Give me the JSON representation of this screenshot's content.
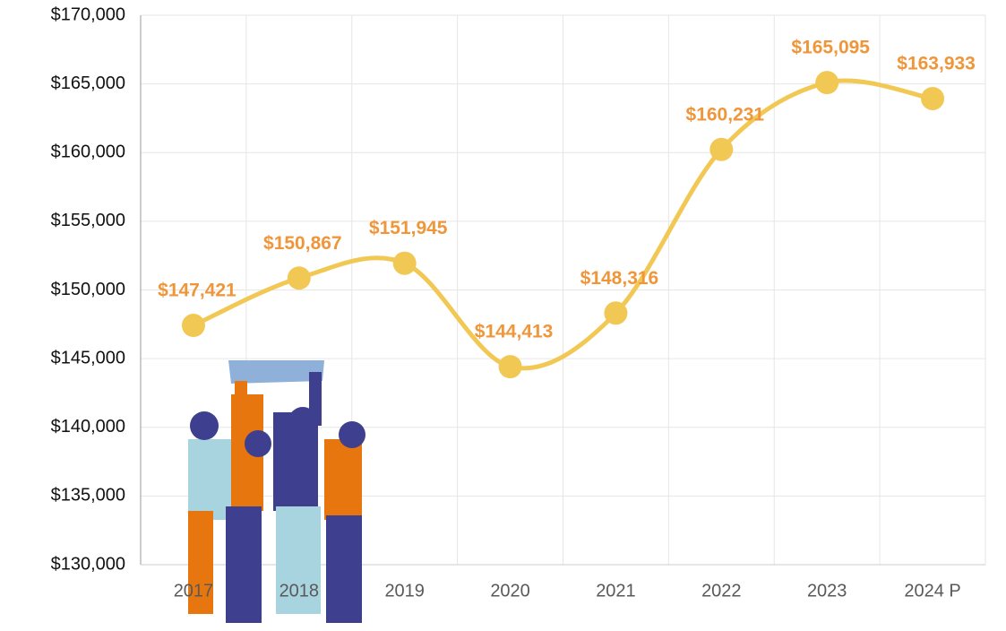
{
  "chart_data": {
    "type": "line",
    "categories": [
      "2017",
      "2018",
      "2019",
      "2020",
      "2021",
      "2022",
      "2023",
      "2024 P"
    ],
    "values": [
      147421,
      150867,
      151945,
      144413,
      148316,
      160231,
      165095,
      163933
    ],
    "value_labels": [
      "$147,421",
      "$150,867",
      "$151,945",
      "$144,413",
      "$148,316",
      "$160,231",
      "$165,095",
      "$163,933"
    ],
    "color": "#f2c855",
    "label_color": "#f0963a",
    "ylim": [
      130000,
      170000
    ],
    "yticks": [
      {
        "value": 130000,
        "label": "$130,000"
      },
      {
        "value": 135000,
        "label": "$135,000"
      },
      {
        "value": 140000,
        "label": "$140,000"
      },
      {
        "value": 145000,
        "label": "$145,000"
      },
      {
        "value": 150000,
        "label": "$150,000"
      },
      {
        "value": 155000,
        "label": "$155,000"
      },
      {
        "value": 160000,
        "label": "$160,000"
      },
      {
        "value": 165000,
        "label": "$165,000"
      },
      {
        "value": 170000,
        "label": "$170,000"
      }
    ],
    "grid": true
  }
}
